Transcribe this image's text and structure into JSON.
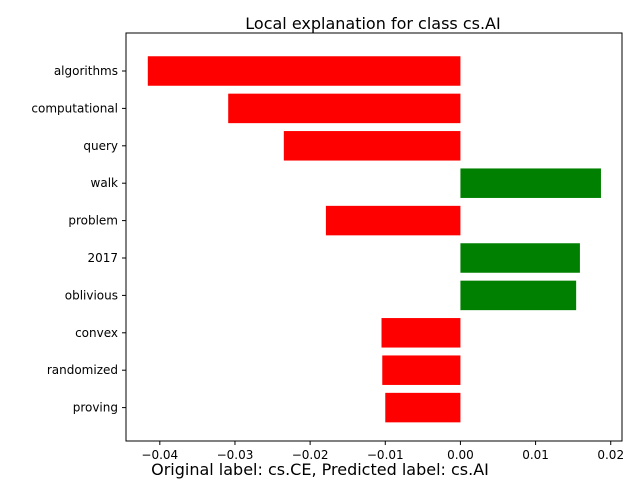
{
  "chart_data": {
    "type": "bar",
    "orientation": "horizontal",
    "title": "Local explanation for class cs.AI",
    "caption": "Original label: cs.CE, Predicted label: cs.AI",
    "xlabel": "",
    "ylabel": "",
    "categories": [
      "algorithms",
      "computational",
      "query",
      "walk",
      "problem",
      "2017",
      "oblivious",
      "convex",
      "randomized",
      "proving"
    ],
    "values": [
      -0.0416,
      -0.0309,
      -0.0235,
      0.0187,
      -0.0179,
      0.0159,
      0.0154,
      -0.0105,
      -0.0104,
      -0.01
    ],
    "xlim": [
      -0.0445,
      0.0215
    ],
    "xticks": [
      -0.04,
      -0.03,
      -0.02,
      -0.01,
      0.0,
      0.01,
      0.02
    ],
    "xtick_labels": [
      "−0.04",
      "−0.03",
      "−0.02",
      "−0.01",
      "0.00",
      "0.01",
      "0.02"
    ],
    "colors": {
      "positive": "#008000",
      "negative": "#ff0000"
    },
    "grid": false,
    "legend": "none"
  }
}
